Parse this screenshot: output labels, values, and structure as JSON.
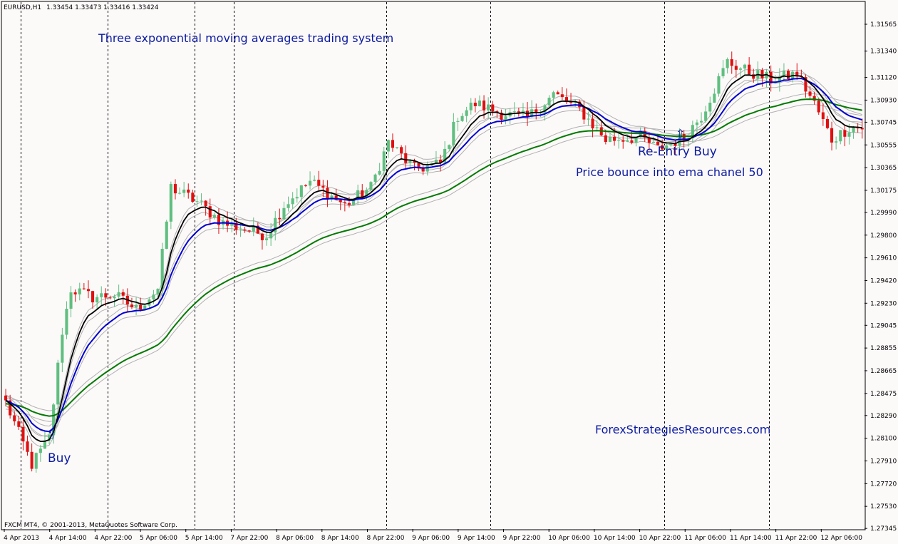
{
  "header": {
    "symbol": "EURUSD,H1",
    "ohlc": "1.33454 1.33473 1.33416 1.33424"
  },
  "credit": "FXCM MT4, © 2001-2013, MetaQuotes Software Corp.",
  "annotations": {
    "title": "Three exponential moving averages trading system",
    "buy": "Buy",
    "reentry": "Re-Entry Buy",
    "bounce": "Price bounce into ema chanel 50",
    "site": "ForexStrategiesResources.com",
    "arrow_glyph": "⇧"
  },
  "colors": {
    "background": "#fcf9f9",
    "bull_candle": "#5fbf7f",
    "bear_candle": "#e01010",
    "ema_fast": "#000000",
    "ema_medium": "#0000d0",
    "ema_slow": "#007a00",
    "ema_band": "#b0b0b0",
    "annotation_text": "#0a1aa0"
  },
  "chart_data": {
    "type": "candlestick",
    "symbol": "EURUSD",
    "timeframe": "H1",
    "y_ticks": [
      "1.31565",
      "1.31340",
      "1.31120",
      "1.30930",
      "1.30745",
      "1.30555",
      "1.30365",
      "1.30175",
      "1.29990",
      "1.29800",
      "1.29610",
      "1.29420",
      "1.29230",
      "1.29045",
      "1.28855",
      "1.28665",
      "1.28475",
      "1.28290",
      "1.28100",
      "1.27910",
      "1.27720",
      "1.27530",
      "1.27345"
    ],
    "ylim": [
      1.2734,
      1.3175
    ],
    "x_ticks": [
      "4 Apr 2013",
      "4 Apr 14:00",
      "4 Apr 22:00",
      "5 Apr 06:00",
      "5 Apr 14:00",
      "7 Apr 22:00",
      "8 Apr 06:00",
      "8 Apr 14:00",
      "8 Apr 22:00",
      "9 Apr 06:00",
      "9 Apr 14:00",
      "9 Apr 22:00",
      "10 Apr 06:00",
      "10 Apr 14:00",
      "10 Apr 22:00",
      "11 Apr 06:00",
      "11 Apr 14:00",
      "11 Apr 22:00",
      "12 Apr 06:00"
    ],
    "session_separators": [
      4,
      24,
      44,
      53,
      88,
      112,
      152,
      176
    ],
    "markers": [
      {
        "label": "Buy",
        "bar": 8,
        "price": 1.2815
      },
      {
        "label": "Re-Entry Buy",
        "bar": 158,
        "price": 1.3057
      }
    ],
    "price_path": [
      {
        "bar": 0,
        "price": 1.284
      },
      {
        "bar": 6,
        "price": 1.2788
      },
      {
        "bar": 10,
        "price": 1.281
      },
      {
        "bar": 13,
        "price": 1.29
      },
      {
        "bar": 15,
        "price": 1.2935
      },
      {
        "bar": 20,
        "price": 1.2928
      },
      {
        "bar": 25,
        "price": 1.293
      },
      {
        "bar": 30,
        "price": 1.2918
      },
      {
        "bar": 35,
        "price": 1.2935
      },
      {
        "bar": 38,
        "price": 1.302
      },
      {
        "bar": 44,
        "price": 1.3008
      },
      {
        "bar": 50,
        "price": 1.299
      },
      {
        "bar": 60,
        "price": 1.298
      },
      {
        "bar": 64,
        "price": 1.3005
      },
      {
        "bar": 70,
        "price": 1.3025
      },
      {
        "bar": 78,
        "price": 1.3005
      },
      {
        "bar": 84,
        "price": 1.302
      },
      {
        "bar": 88,
        "price": 1.3058
      },
      {
        "bar": 94,
        "price": 1.3035
      },
      {
        "bar": 100,
        "price": 1.304
      },
      {
        "bar": 104,
        "price": 1.308
      },
      {
        "bar": 108,
        "price": 1.309
      },
      {
        "bar": 114,
        "price": 1.3082
      },
      {
        "bar": 120,
        "price": 1.3078
      },
      {
        "bar": 126,
        "price": 1.3098
      },
      {
        "bar": 132,
        "price": 1.3085
      },
      {
        "bar": 138,
        "price": 1.306
      },
      {
        "bar": 146,
        "price": 1.3062
      },
      {
        "bar": 150,
        "price": 1.3052
      },
      {
        "bar": 156,
        "price": 1.3062
      },
      {
        "bar": 160,
        "price": 1.308
      },
      {
        "bar": 166,
        "price": 1.3125
      },
      {
        "bar": 170,
        "price": 1.3118
      },
      {
        "bar": 176,
        "price": 1.311
      },
      {
        "bar": 182,
        "price": 1.3115
      },
      {
        "bar": 186,
        "price": 1.309
      },
      {
        "bar": 190,
        "price": 1.306
      },
      {
        "bar": 194,
        "price": 1.307
      }
    ]
  }
}
